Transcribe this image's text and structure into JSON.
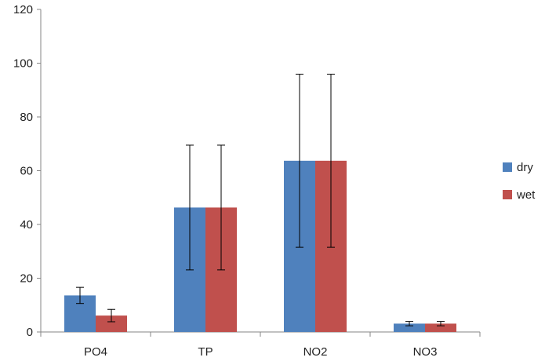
{
  "chart_data": {
    "type": "bar",
    "title": "",
    "xlabel": "",
    "ylabel": "",
    "ylim": [
      0,
      120
    ],
    "yticks": [
      0,
      20,
      40,
      60,
      80,
      100,
      120
    ],
    "categories": [
      "PO4",
      "TP",
      "NO2",
      "NO3"
    ],
    "series": [
      {
        "name": "dry",
        "color": "#4f81bd",
        "values": [
          13.6,
          46.3,
          63.7,
          3.1
        ],
        "errors": [
          3.0,
          23.2,
          32.2,
          0.8
        ]
      },
      {
        "name": "wet",
        "color": "#c0504d",
        "values": [
          6.1,
          46.3,
          63.7,
          3.1
        ],
        "errors": [
          2.3,
          23.2,
          32.2,
          0.8
        ]
      }
    ],
    "grid": false,
    "legend": "right"
  }
}
